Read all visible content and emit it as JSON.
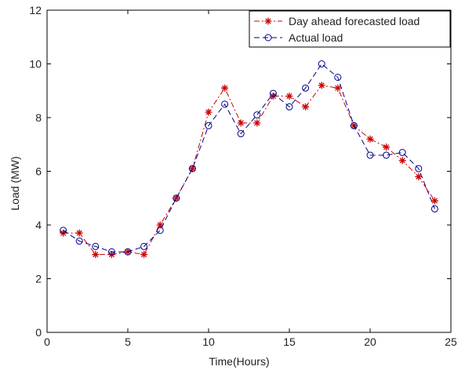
{
  "chart_data": {
    "type": "line",
    "title": "",
    "xlabel": "Time(Hours)",
    "ylabel": "Load (MW)",
    "xlim": [
      0,
      25
    ],
    "ylim": [
      0,
      12
    ],
    "xticks": [
      "0",
      "5",
      "10",
      "15",
      "20",
      "25"
    ],
    "yticks": [
      "0",
      "2",
      "4",
      "6",
      "8",
      "10",
      "12"
    ],
    "grid": false,
    "legend_position": "top-right",
    "x": [
      1,
      2,
      3,
      4,
      5,
      6,
      7,
      8,
      9,
      10,
      11,
      12,
      13,
      14,
      15,
      16,
      17,
      18,
      19,
      20,
      21,
      22,
      23,
      24
    ],
    "series": [
      {
        "name": "Day ahead forecasted load",
        "color": "#cc0000",
        "line_style": "dash-dot",
        "marker": "asterisk",
        "values": [
          3.7,
          3.7,
          2.9,
          2.9,
          3.0,
          2.9,
          4.0,
          5.0,
          6.1,
          8.2,
          9.1,
          7.8,
          7.8,
          8.8,
          8.8,
          8.4,
          9.2,
          9.1,
          7.7,
          7.2,
          6.9,
          6.4,
          5.8,
          4.9
        ]
      },
      {
        "name": "Actual load",
        "color": "#00008b",
        "line_style": "dashed",
        "marker": "circle",
        "values": [
          3.8,
          3.4,
          3.2,
          3.0,
          3.0,
          3.2,
          3.8,
          5.0,
          6.1,
          7.7,
          8.5,
          7.4,
          8.1,
          8.9,
          8.4,
          9.1,
          10.0,
          9.5,
          7.7,
          6.6,
          6.6,
          6.7,
          6.1,
          4.6
        ]
      }
    ]
  }
}
